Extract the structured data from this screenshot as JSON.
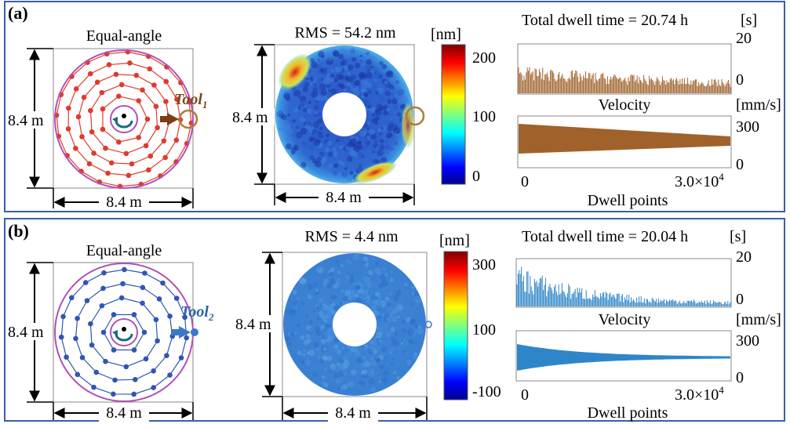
{
  "panel_a": {
    "label": "(a)",
    "path_title": "Equal-angle",
    "dim_label": "8.4 m",
    "tool_label_main": "Tool",
    "tool_label_sub": "1",
    "rms_title": "RMS = 54.2 nm",
    "cbar_unit": "[nm]",
    "cbar_ticks": [
      "200",
      "100",
      "0"
    ],
    "dwell_title": "Total dwell time = 20.74 h",
    "dwell_unit": "[s]",
    "dwell_ticks": [
      "20",
      "0"
    ],
    "velocity_title": "Velocity",
    "velocity_unit": "[mm/s]",
    "velocity_ticks": [
      "300",
      "0"
    ],
    "x_tick_start": "0",
    "x_tick_end": "3.0×10",
    "x_tick_end_exp": "4",
    "x_label": "Dwell points",
    "color": "#e03a2e",
    "plot_color": "#a0622a"
  },
  "panel_b": {
    "label": "(b)",
    "path_title": "Equal-angle",
    "dim_label": "8.4 m",
    "tool_label_main": "Tool",
    "tool_label_sub": "2",
    "rms_title": "RMS = 4.4 nm",
    "cbar_unit": "[nm]",
    "cbar_ticks": [
      "300",
      "100",
      "-100"
    ],
    "dwell_title": "Total dwell time = 20.04 h",
    "dwell_unit": "[s]",
    "dwell_ticks": [
      "20",
      "0"
    ],
    "velocity_title": "Velocity",
    "velocity_unit": "[mm/s]",
    "velocity_ticks": [
      "300",
      "0"
    ],
    "x_tick_start": "0",
    "x_tick_end": "3.0×10",
    "x_tick_end_exp": "4",
    "x_label": "Dwell points",
    "color": "#2f56b4",
    "plot_color": "#2e86c9"
  }
}
